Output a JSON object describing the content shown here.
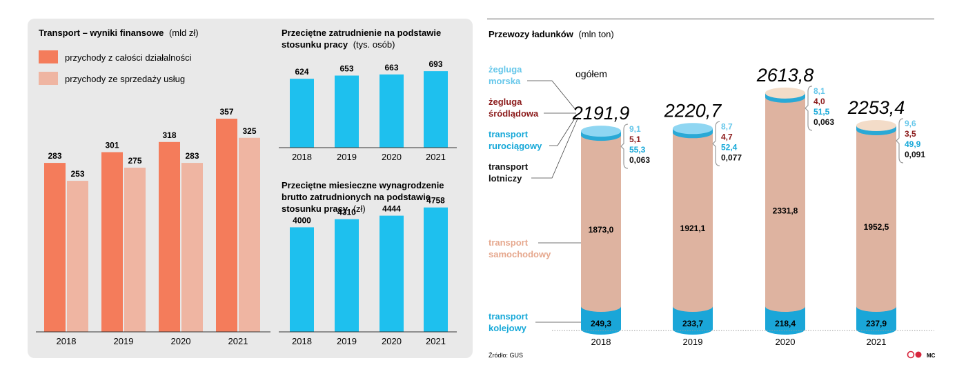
{
  "colors": {
    "panel_bg": "#e9e9e9",
    "revenue_total": "#f47c5b",
    "revenue_services": "#efb5a2",
    "blue": "#1ec0ee",
    "cyl_body": "#deb3a0",
    "cyl_base": "#1aa6d8",
    "text_sea": "#66c7ea",
    "text_inland": "#8b1a1a",
    "text_pipe": "#16a8d8",
    "text_road": "#e6a88e",
    "text_rail": "#16a8d8"
  },
  "revenue": {
    "title_bold": "Transport – wyniki finansowe",
    "title_unit": "(mld zł)",
    "legend": [
      "przychody z całości działalności",
      "przychody ze sprzedaży usług"
    ],
    "chart_data": {
      "type": "bar",
      "categories": [
        "2018",
        "2019",
        "2020",
        "2021"
      ],
      "series": [
        {
          "name": "przychody z całości działalności",
          "values": [
            283,
            301,
            318,
            357
          ]
        },
        {
          "name": "przychody ze sprzedaży usług",
          "values": [
            253,
            275,
            283,
            325
          ]
        }
      ],
      "ylim": [
        0,
        520
      ]
    }
  },
  "employment": {
    "title_bold": "Przeciętne zatrudnienie na podstawie stosunku pracy",
    "title_unit": "(tys. osób)",
    "chart_data": {
      "type": "bar",
      "categories": [
        "2018",
        "2019",
        "2020",
        "2021"
      ],
      "values": [
        624,
        653,
        663,
        693
      ],
      "ylim": [
        0,
        1250
      ]
    }
  },
  "salary": {
    "title_bold": "Przeciętne miesieczne wynagrodzenie brutto zatrudnionych na podstawie stosunku pracy",
    "title_unit": "(zł)",
    "chart_data": {
      "type": "bar",
      "categories": [
        "2018",
        "2019",
        "2020",
        "2021"
      ],
      "values": [
        4000,
        4310,
        4444,
        4758
      ],
      "ylim": [
        0,
        7600
      ]
    }
  },
  "cargo": {
    "title_bold": "Przewozy ładunków",
    "title_unit": "(mln ton)",
    "ogolem_label": "ogółem",
    "source": "Źródło: GUS",
    "author": "MC",
    "legend": {
      "sea": [
        "żegluga",
        "morska"
      ],
      "inland": [
        "żegluga",
        "śródlądowa"
      ],
      "pipe": [
        "transport",
        "rurociągowy"
      ],
      "air": [
        "transport",
        "lotniczy"
      ],
      "road": [
        "transport",
        "samochodowy"
      ],
      "rail": [
        "transport",
        "kolejowy"
      ]
    },
    "chart_data": {
      "type": "bar",
      "categories": [
        "2018",
        "2019",
        "2020",
        "2021"
      ],
      "totals": [
        "2191,9",
        "2220,7",
        "2613,8",
        "2253,4"
      ],
      "series": [
        {
          "name": "transport samochodowy",
          "values": [
            "1873,0",
            "1921,1",
            "2331,8",
            "1952,5"
          ]
        },
        {
          "name": "transport kolejowy",
          "values": [
            "249,3",
            "233,7",
            "218,4",
            "237,9"
          ]
        },
        {
          "name": "żegluga morska",
          "values": [
            "9,1",
            "8,7",
            "8,1",
            "9,6"
          ]
        },
        {
          "name": "żegluga śródlądowa",
          "values": [
            "5,1",
            "4,7",
            "4,0",
            "3,5"
          ]
        },
        {
          "name": "transport rurociągowy",
          "values": [
            "55,3",
            "52,4",
            "51,5",
            "49,9"
          ]
        },
        {
          "name": "transport lotniczy",
          "values": [
            "0,063",
            "0,077",
            "0,063",
            "0,091"
          ]
        }
      ]
    }
  }
}
